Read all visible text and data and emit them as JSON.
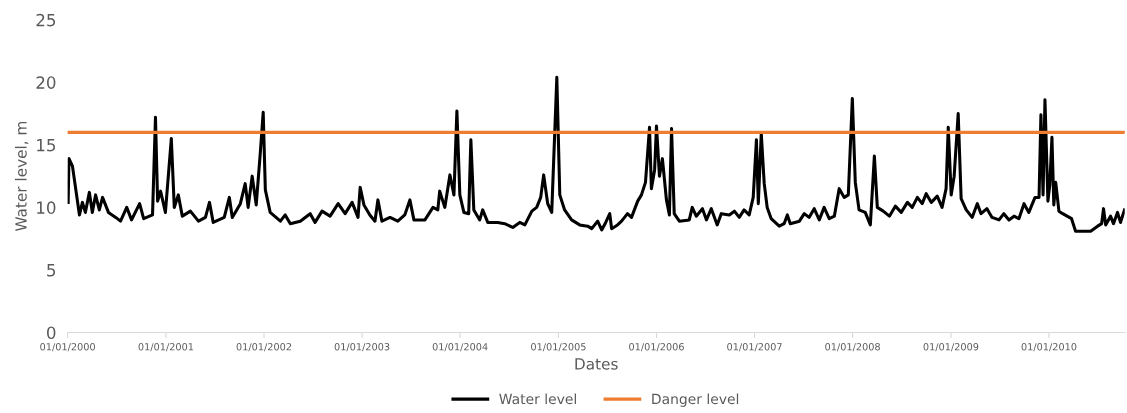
{
  "chart_data": {
    "type": "line",
    "xlabel": "Dates",
    "ylabel": "Water level, m",
    "xlim": [
      "2000-01-01",
      "2010-10-10"
    ],
    "ylim": [
      0,
      25
    ],
    "yticks": [
      0,
      5,
      10,
      15,
      20,
      25
    ],
    "xticks": [
      {
        "value": "2000-01-01",
        "label": "01/01/2000"
      },
      {
        "value": "2001-01-01",
        "label": "01/01/2001"
      },
      {
        "value": "2002-01-01",
        "label": "01/01/2002"
      },
      {
        "value": "2003-01-01",
        "label": "01/01/2003"
      },
      {
        "value": "2004-01-01",
        "label": "01/01/2004"
      },
      {
        "value": "2005-01-01",
        "label": "01/01/2005"
      },
      {
        "value": "2006-01-01",
        "label": "01/01/2006"
      },
      {
        "value": "2007-01-01",
        "label": "01/01/2007"
      },
      {
        "value": "2008-01-01",
        "label": "01/01/2008"
      },
      {
        "value": "2009-01-01",
        "label": "01/01/2009"
      },
      {
        "value": "2010-01-01",
        "label": "01/01/2010"
      }
    ],
    "grid": false,
    "legend": "bottom",
    "marker": "none",
    "line_style": "solid",
    "series": [
      {
        "name": "Water level",
        "color": "#000000",
        "x": [
          "2000-01-03",
          "2000-01-06",
          "2000-01-19",
          "2000-02-14",
          "2000-02-25",
          "2000-03-07",
          "2000-03-22",
          "2000-04-02",
          "2000-04-14",
          "2000-04-28",
          "2000-05-10",
          "2000-06-01",
          "2000-06-28",
          "2000-07-16",
          "2000-08-08",
          "2000-08-26",
          "2000-09-25",
          "2000-10-10",
          "2000-11-12",
          "2000-11-23",
          "2000-12-01",
          "2000-12-12",
          "2000-12-30",
          "2001-01-21",
          "2001-02-01",
          "2001-02-16",
          "2001-03-03",
          "2001-04-02",
          "2001-05-02",
          "2001-05-28",
          "2001-06-12",
          "2001-06-26",
          "2001-08-06",
          "2001-08-25",
          "2001-09-05",
          "2001-10-05",
          "2001-10-23",
          "2001-11-03",
          "2001-11-18",
          "2001-12-03",
          "2001-12-18",
          "2001-12-29",
          "2002-01-06",
          "2002-01-24",
          "2002-03-03",
          "2002-03-21",
          "2002-04-09",
          "2002-05-16",
          "2002-06-22",
          "2002-07-10",
          "2002-08-05",
          "2002-09-04",
          "2002-10-04",
          "2002-10-30",
          "2002-11-25",
          "2002-12-17",
          "2002-12-25",
          "2003-01-08",
          "2003-01-30",
          "2003-02-18",
          "2003-03-01",
          "2003-03-16",
          "2003-04-15",
          "2003-05-14",
          "2003-06-09",
          "2003-06-28",
          "2003-07-13",
          "2003-08-23",
          "2003-09-22",
          "2003-10-10",
          "2003-10-17",
          "2003-11-05",
          "2003-11-24",
          "2003-12-09",
          "2003-12-20",
          "2003-12-31",
          "2004-01-15",
          "2004-02-02",
          "2004-02-10",
          "2004-02-21",
          "2004-03-14",
          "2004-03-25",
          "2004-04-13",
          "2004-05-20",
          "2004-06-15",
          "2004-07-15",
          "2004-08-10",
          "2004-08-29",
          "2004-09-24",
          "2004-10-12",
          "2004-10-27",
          "2004-11-07",
          "2004-11-22",
          "2004-12-07",
          "2004-12-26",
          "2005-01-06",
          "2005-01-24",
          "2005-02-19",
          "2005-03-21",
          "2005-04-20",
          "2005-05-05",
          "2005-05-27",
          "2005-06-11",
          "2005-06-26",
          "2005-07-11",
          "2005-07-18",
          "2005-08-09",
          "2005-08-24",
          "2005-09-15",
          "2005-09-30",
          "2005-10-23",
          "2005-11-06",
          "2005-11-21",
          "2005-12-06",
          "2005-12-13",
          "2005-12-25",
          "2006-01-01",
          "2006-01-12",
          "2006-01-23",
          "2006-02-07",
          "2006-02-18",
          "2006-02-26",
          "2006-03-08",
          "2006-03-27",
          "2006-05-03",
          "2006-05-14",
          "2006-05-29",
          "2006-06-21",
          "2006-07-06",
          "2006-07-24",
          "2006-08-15",
          "2006-08-30",
          "2006-09-29",
          "2006-10-18",
          "2006-11-05",
          "2006-11-23",
          "2006-12-12",
          "2006-12-27",
          "2007-01-08",
          "2007-01-15",
          "2007-01-26",
          "2007-02-06",
          "2007-02-17",
          "2007-03-04",
          "2007-04-03",
          "2007-04-21",
          "2007-05-03",
          "2007-05-14",
          "2007-06-17",
          "2007-07-05",
          "2007-07-23",
          "2007-08-11",
          "2007-08-30",
          "2007-09-17",
          "2007-10-06",
          "2007-10-25",
          "2007-11-12",
          "2007-12-01",
          "2007-12-16",
          "2007-12-31",
          "2008-01-11",
          "2008-01-25",
          "2008-02-17",
          "2008-03-07",
          "2008-03-22",
          "2008-04-02",
          "2008-04-24",
          "2008-05-17",
          "2008-06-08",
          "2008-06-30",
          "2008-07-23",
          "2008-08-10",
          "2008-08-29",
          "2008-09-16",
          "2008-10-01",
          "2008-10-20",
          "2008-11-11",
          "2008-11-29",
          "2008-12-14",
          "2008-12-22",
          "2009-01-02",
          "2009-01-13",
          "2009-01-28",
          "2009-02-08",
          "2009-02-27",
          "2009-03-21",
          "2009-04-09",
          "2009-04-23",
          "2009-05-15",
          "2009-06-03",
          "2009-06-29",
          "2009-07-17",
          "2009-08-05",
          "2009-08-24",
          "2009-09-11",
          "2009-09-30",
          "2009-10-18",
          "2009-11-10",
          "2009-11-25",
          "2009-12-02",
          "2009-12-10",
          "2009-12-17",
          "2009-12-28",
          "2010-01-04",
          "2010-01-12",
          "2010-01-19",
          "2010-01-26",
          "2010-02-07",
          "2010-02-21",
          "2010-03-26",
          "2010-04-10",
          "2010-06-05",
          "2010-07-01",
          "2010-07-16",
          "2010-07-23",
          "2010-07-31",
          "2010-08-18",
          "2010-08-29",
          "2010-09-13",
          "2010-09-24",
          "2010-10-09"
        ],
        "values": [
          10.4,
          13.9,
          13.3,
          9.4,
          10.4,
          9.6,
          11.2,
          9.6,
          11.0,
          9.8,
          10.8,
          9.6,
          9.2,
          8.9,
          10.0,
          9.0,
          10.3,
          9.1,
          9.4,
          17.2,
          10.5,
          11.3,
          9.6,
          15.5,
          10.0,
          11.0,
          9.3,
          9.7,
          8.9,
          9.2,
          10.4,
          8.8,
          9.2,
          10.8,
          9.2,
          10.3,
          11.9,
          10.0,
          12.5,
          10.2,
          14.3,
          17.6,
          11.4,
          9.6,
          8.9,
          9.4,
          8.7,
          8.9,
          9.5,
          8.8,
          9.7,
          9.3,
          10.3,
          9.5,
          10.4,
          9.2,
          11.6,
          10.2,
          9.4,
          8.9,
          10.6,
          8.9,
          9.2,
          8.9,
          9.4,
          10.6,
          9.0,
          9.0,
          10.0,
          9.8,
          11.3,
          10.0,
          12.6,
          11.0,
          17.7,
          11.0,
          9.6,
          9.5,
          15.4,
          9.8,
          9.0,
          9.8,
          8.8,
          8.8,
          8.7,
          8.4,
          8.8,
          8.6,
          9.7,
          10.0,
          10.8,
          12.6,
          10.3,
          9.6,
          20.4,
          11.0,
          9.8,
          9.0,
          8.6,
          8.5,
          8.3,
          8.9,
          8.2,
          8.8,
          9.5,
          8.3,
          8.6,
          8.9,
          9.5,
          9.2,
          10.5,
          11.0,
          12.0,
          16.4,
          11.5,
          13.0,
          16.5,
          12.5,
          13.9,
          10.6,
          9.4,
          16.3,
          9.5,
          8.9,
          9.0,
          10.0,
          9.3,
          9.9,
          9.0,
          9.9,
          8.6,
          9.5,
          9.4,
          9.7,
          9.2,
          9.8,
          9.4,
          10.8,
          15.4,
          10.3,
          15.9,
          11.9,
          10.0,
          9.1,
          8.5,
          8.7,
          9.4,
          8.7,
          8.9,
          9.5,
          9.2,
          9.9,
          9.0,
          10.0,
          9.1,
          9.3,
          11.5,
          10.8,
          11.0,
          18.7,
          12.0,
          9.8,
          9.6,
          8.6,
          14.1,
          10.0,
          9.7,
          9.3,
          10.1,
          9.6,
          10.4,
          10.0,
          10.8,
          10.3,
          11.1,
          10.4,
          10.9,
          10.0,
          11.5,
          16.4,
          11.0,
          12.5,
          17.5,
          10.7,
          9.8,
          9.2,
          10.3,
          9.5,
          9.9,
          9.2,
          9.0,
          9.5,
          9.0,
          9.3,
          9.1,
          10.3,
          9.6,
          10.8,
          10.8,
          17.4,
          11.0,
          18.6,
          10.5,
          11.8,
          15.6,
          10.2,
          12.0,
          9.7,
          9.5,
          9.1,
          8.1,
          8.1,
          8.5,
          8.7,
          9.9,
          8.6,
          9.3,
          8.7,
          9.6,
          8.8,
          9.8
        ]
      },
      {
        "name": "Danger level",
        "color": "#ed7d31",
        "x": [
          "2000-01-01",
          "2010-10-10"
        ],
        "values": [
          16,
          16
        ]
      }
    ]
  }
}
